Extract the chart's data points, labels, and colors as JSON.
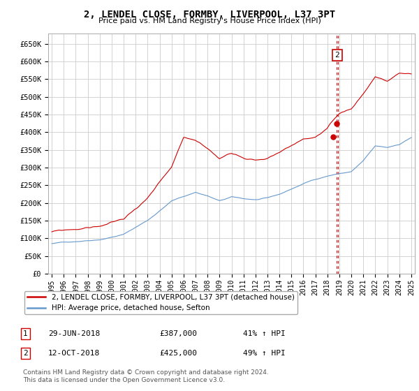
{
  "title": "2, LENDEL CLOSE, FORMBY, LIVERPOOL, L37 3PT",
  "subtitle": "Price paid vs. HM Land Registry's House Price Index (HPI)",
  "legend_line1": "2, LENDEL CLOSE, FORMBY, LIVERPOOL, L37 3PT (detached house)",
  "legend_line2": "HPI: Average price, detached house, Sefton",
  "transaction1_date": "29-JUN-2018",
  "transaction1_price": "£387,000",
  "transaction1_hpi": "41% ↑ HPI",
  "transaction2_date": "12-OCT-2018",
  "transaction2_price": "£425,000",
  "transaction2_hpi": "49% ↑ HPI",
  "copyright": "Contains HM Land Registry data © Crown copyright and database right 2024.\nThis data is licensed under the Open Government Licence v3.0.",
  "hpi_color": "#6699cc",
  "price_color": "#cc0000",
  "dashed_line_color": "#cc0000",
  "background_color": "#ffffff",
  "grid_color": "#cccccc",
  "ylim": [
    0,
    680000
  ],
  "yticks": [
    0,
    50000,
    100000,
    150000,
    200000,
    250000,
    300000,
    350000,
    400000,
    450000,
    500000,
    550000,
    600000,
    650000
  ],
  "xlim_start": 1994.7,
  "xlim_end": 2025.3,
  "transaction1_x": 2018.5,
  "transaction2_x": 2018.79,
  "transaction1_y": 387000,
  "transaction2_y": 425000,
  "dashed_x": 2018.83
}
